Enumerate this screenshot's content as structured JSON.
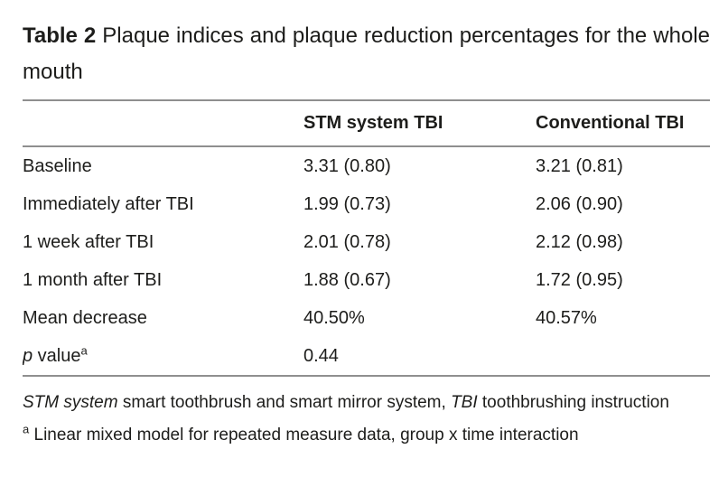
{
  "page": {
    "background_color": "#ffffff",
    "text_color": "#1d1d1b",
    "rule_color": "#8f8f8f"
  },
  "table": {
    "title": {
      "label": "Table 2",
      "text": "Plaque indices and plaque reduction percentages for the whole mouth"
    },
    "header": {
      "col1": "",
      "col2": "STM system TBI",
      "col3": "Conventional TBI"
    },
    "rows": [
      {
        "label": "Baseline",
        "stm": "3.31 (0.80)",
        "conv": "3.21 (0.81)"
      },
      {
        "label": "Immediately after TBI",
        "stm": "1.99 (0.73)",
        "conv": "2.06 (0.90)"
      },
      {
        "label": "1 week after TBI",
        "stm": "2.01 (0.78)",
        "conv": "2.12 (0.98)"
      },
      {
        "label": "1 month after TBI",
        "stm": "1.88 (0.67)",
        "conv": "1.72 (0.95)"
      },
      {
        "label": "Mean decrease",
        "stm": "40.50%",
        "conv": "40.57%"
      }
    ],
    "p_row": {
      "label_italic": "p",
      "label_rest": " value",
      "superscript": "a",
      "stm": "0.44",
      "conv": ""
    },
    "footnotes": {
      "abbreviations": {
        "term1": "STM system",
        "def1": " smart toothbrush and smart mirror system, ",
        "term2": "TBI",
        "def2": " toothbrushing instruction"
      },
      "note_a": {
        "marker": "a",
        "text": " Linear mixed model for repeated measure data, group x time interaction"
      }
    }
  }
}
